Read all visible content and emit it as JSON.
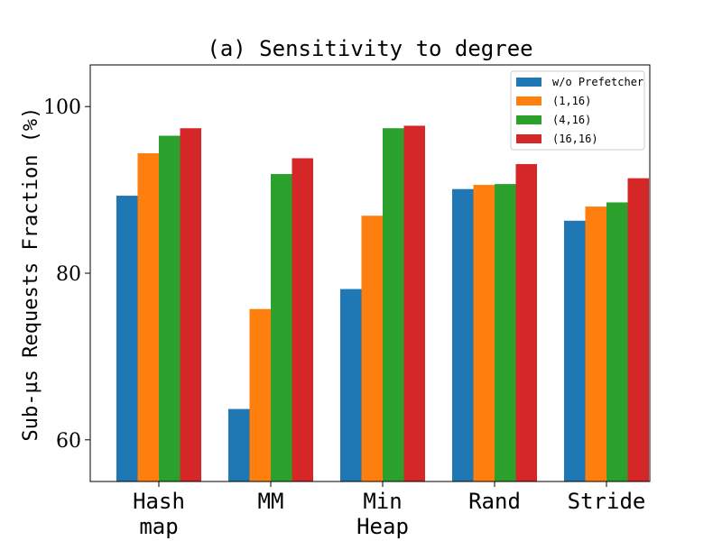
{
  "chart_data": {
    "type": "bar",
    "title": "(a) Sensitivity to degree",
    "ylabel": "Sub-µs Requests Fraction (%)",
    "xlabel": "",
    "ylim": [
      55,
      105
    ],
    "yticks": [
      60,
      80,
      100
    ],
    "grid": false,
    "legend_position": "top-right",
    "categories": [
      [
        "Hash",
        "map"
      ],
      [
        "MM"
      ],
      [
        "Min",
        "Heap"
      ],
      [
        "Rand"
      ],
      [
        "Stride"
      ]
    ],
    "series": [
      {
        "name": "w/o Prefetcher",
        "color": "#1f77b4",
        "values": [
          89.3,
          63.7,
          78.1,
          90.1,
          86.3
        ]
      },
      {
        "name": "(1,16)",
        "color": "#ff7f0e",
        "values": [
          94.4,
          75.7,
          86.9,
          90.6,
          88.0
        ]
      },
      {
        "name": "(4,16)",
        "color": "#2ca02c",
        "values": [
          96.5,
          91.9,
          97.4,
          90.7,
          88.5
        ]
      },
      {
        "name": "(16,16)",
        "color": "#d62728",
        "values": [
          97.4,
          93.8,
          97.7,
          93.1,
          91.4
        ]
      }
    ]
  }
}
